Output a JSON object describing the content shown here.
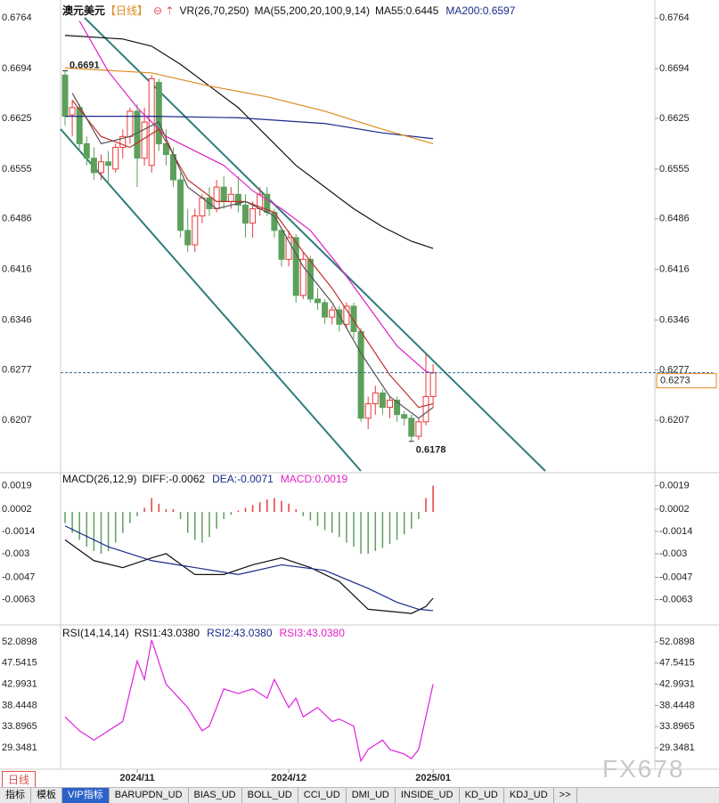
{
  "chart_data": [
    {
      "type": "candlestick",
      "title": "澳元美元",
      "period": "【日线】",
      "indicator": "VR(26,70,250)",
      "legend": "MA(55,200,20,100,9,14)",
      "legend_values": [
        {
          "label": "MA55:0.6445",
          "color": "#111111"
        },
        {
          "label": "MA200:0.6597",
          "color": "#1a2a8a"
        }
      ],
      "colors": {
        "up": "#e8393a",
        "down": "#5ca05c"
      },
      "ohlc": [
        [
          0.6685,
          0.6691,
          0.6615,
          0.6628
        ],
        [
          0.663,
          0.665,
          0.66,
          0.664
        ],
        [
          0.664,
          0.6645,
          0.658,
          0.659
        ],
        [
          0.659,
          0.66,
          0.656,
          0.657
        ],
        [
          0.657,
          0.6585,
          0.654,
          0.655
        ],
        [
          0.655,
          0.6575,
          0.654,
          0.6565
        ],
        [
          0.6565,
          0.658,
          0.6535,
          0.656
        ],
        [
          0.6555,
          0.659,
          0.655,
          0.6585
        ],
        [
          0.6585,
          0.661,
          0.657,
          0.66
        ],
        [
          0.66,
          0.664,
          0.659,
          0.6635
        ],
        [
          0.6635,
          0.6645,
          0.653,
          0.657
        ],
        [
          0.657,
          0.664,
          0.656,
          0.662
        ],
        [
          0.656,
          0.6685,
          0.655,
          0.668
        ],
        [
          0.6675,
          0.668,
          0.658,
          0.659
        ],
        [
          0.659,
          0.661,
          0.656,
          0.6575
        ],
        [
          0.6575,
          0.6585,
          0.653,
          0.654
        ],
        [
          0.654,
          0.655,
          0.646,
          0.647
        ],
        [
          0.647,
          0.65,
          0.644,
          0.645
        ],
        [
          0.645,
          0.65,
          0.644,
          0.649
        ],
        [
          0.649,
          0.652,
          0.648,
          0.6515
        ],
        [
          0.6515,
          0.653,
          0.649,
          0.65
        ],
        [
          0.65,
          0.654,
          0.6495,
          0.653
        ],
        [
          0.653,
          0.6545,
          0.65,
          0.651
        ],
        [
          0.651,
          0.653,
          0.65,
          0.652
        ],
        [
          0.652,
          0.6545,
          0.6495,
          0.6505
        ],
        [
          0.6505,
          0.652,
          0.646,
          0.648
        ],
        [
          0.648,
          0.651,
          0.646,
          0.65
        ],
        [
          0.65,
          0.653,
          0.649,
          0.652
        ],
        [
          0.652,
          0.653,
          0.649,
          0.6495
        ],
        [
          0.6495,
          0.65,
          0.646,
          0.647
        ],
        [
          0.647,
          0.6475,
          0.642,
          0.643
        ],
        [
          0.643,
          0.647,
          0.642,
          0.646
        ],
        [
          0.646,
          0.6465,
          0.637,
          0.638
        ],
        [
          0.638,
          0.644,
          0.6375,
          0.643
        ],
        [
          0.643,
          0.6435,
          0.637,
          0.6375
        ],
        [
          0.6375,
          0.639,
          0.636,
          0.637
        ],
        [
          0.637,
          0.6375,
          0.634,
          0.635
        ],
        [
          0.635,
          0.6365,
          0.634,
          0.636
        ],
        [
          0.636,
          0.6365,
          0.633,
          0.634
        ],
        [
          0.634,
          0.637,
          0.6335,
          0.6365
        ],
        [
          0.6365,
          0.637,
          0.632,
          0.633
        ],
        [
          0.633,
          0.6335,
          0.6205,
          0.621
        ],
        [
          0.621,
          0.624,
          0.6195,
          0.623
        ],
        [
          0.623,
          0.6255,
          0.6215,
          0.6245
        ],
        [
          0.6245,
          0.625,
          0.6215,
          0.6225
        ],
        [
          0.6225,
          0.624,
          0.621,
          0.6235
        ],
        [
          0.6235,
          0.624,
          0.6205,
          0.6215
        ],
        [
          0.6215,
          0.622,
          0.62,
          0.621
        ],
        [
          0.621,
          0.6215,
          0.6178,
          0.6185
        ],
        [
          0.6185,
          0.621,
          0.618,
          0.6205
        ],
        [
          0.6205,
          0.63,
          0.62,
          0.624
        ],
        [
          0.624,
          0.6285,
          0.6225,
          0.6273
        ]
      ],
      "lines": [
        {
          "color": "#111111",
          "x": [
            0,
            8,
            12,
            16,
            20,
            24,
            28,
            32,
            36,
            40,
            44,
            48,
            51
          ],
          "values": [
            0.674,
            0.6735,
            0.6725,
            0.67,
            0.667,
            0.664,
            0.66,
            0.656,
            0.653,
            0.65,
            0.6475,
            0.6455,
            0.6445
          ]
        },
        {
          "color": "#1a2a8a",
          "x": [
            0,
            12,
            24,
            36,
            44,
            51
          ],
          "values": [
            0.6628,
            0.6628,
            0.6626,
            0.6618,
            0.6605,
            0.6597
          ]
        },
        {
          "color": "#e08a20",
          "x": [
            0,
            12,
            20,
            28,
            36,
            44,
            51
          ],
          "values": [
            0.6695,
            0.6688,
            0.667,
            0.6655,
            0.6635,
            0.661,
            0.659
          ]
        },
        {
          "color": "#e020c8",
          "x": [
            2,
            6,
            10,
            14,
            18,
            22,
            26,
            30,
            34,
            38,
            42,
            46,
            50,
            51
          ],
          "values": [
            0.676,
            0.669,
            0.664,
            0.66,
            0.658,
            0.656,
            0.6525,
            0.65,
            0.647,
            0.642,
            0.6365,
            0.631,
            0.6275,
            0.6272
          ]
        },
        {
          "color": "#c0302a",
          "x": [
            1,
            5,
            9,
            13,
            17,
            21,
            25,
            29,
            33,
            37,
            41,
            45,
            49,
            51
          ],
          "values": [
            0.665,
            0.66,
            0.6585,
            0.661,
            0.654,
            0.651,
            0.651,
            0.6495,
            0.644,
            0.639,
            0.633,
            0.627,
            0.6225,
            0.623
          ]
        },
        {
          "color": "#555555",
          "x": [
            1,
            5,
            9,
            13,
            17,
            21,
            25,
            29,
            33,
            37,
            41,
            45,
            49,
            51
          ],
          "values": [
            0.666,
            0.659,
            0.66,
            0.662,
            0.653,
            0.65,
            0.651,
            0.649,
            0.642,
            0.637,
            0.63,
            0.624,
            0.621,
            0.6225
          ]
        }
      ],
      "annotations": [
        {
          "index": 0,
          "value": 0.6691,
          "label": "0.6691",
          "color": "#e05050"
        },
        {
          "index": 48,
          "value": 0.6178,
          "label": "0.6178",
          "color": "#5ca05c"
        }
      ],
      "last_price": 0.6273,
      "ylim": [
        0.6137,
        0.6789
      ],
      "yticks": [
        0.6764,
        0.6694,
        0.6625,
        0.6555,
        0.6486,
        0.6416,
        0.6346,
        0.6277,
        0.6207
      ],
      "xticks": [
        {
          "value": 10,
          "label": "2024/11"
        },
        {
          "value": 31,
          "label": "2024/12"
        },
        {
          "value": 51,
          "label": "2025/01"
        }
      ]
    },
    {
      "type": "macd",
      "title": "MACD(26,12,9)",
      "legend_values": [
        {
          "label": "DIFF:-0.0062",
          "color": "#111111"
        },
        {
          "label": "DEA:-0.0071",
          "color": "#1a2a8a"
        },
        {
          "label": "MACD:0.0019",
          "color": "#e020c8"
        }
      ],
      "histogram": [
        -0.0008,
        -0.0015,
        -0.002,
        -0.0025,
        -0.0028,
        -0.003,
        -0.0028,
        -0.0022,
        -0.0015,
        -0.0008,
        -0.0003,
        0.0003,
        0.001,
        0.0006,
        0.0002,
        0.0002,
        -0.0005,
        -0.0015,
        -0.002,
        -0.0022,
        -0.0018,
        -0.0012,
        -0.0005,
        -0.0002,
        0.0001,
        0.0003,
        0.0005,
        0.0007,
        0.0009,
        0.001,
        0.0008,
        0.0006,
        0.0002,
        -0.0003,
        -0.0006,
        -0.001,
        -0.0013,
        -0.0015,
        -0.0018,
        -0.0022,
        -0.0025,
        -0.003,
        -0.003,
        -0.0028,
        -0.0026,
        -0.0023,
        -0.002,
        -0.0016,
        -0.0012,
        -0.0005,
        0.001,
        0.0019
      ],
      "lines": [
        {
          "color": "#111111",
          "x": [
            0,
            4,
            8,
            12,
            14,
            18,
            22,
            26,
            30,
            34,
            38,
            42,
            46,
            48,
            50,
            51
          ],
          "values": [
            -0.002,
            -0.0035,
            -0.004,
            -0.0033,
            -0.003,
            -0.0045,
            -0.0045,
            -0.0038,
            -0.0033,
            -0.004,
            -0.005,
            -0.007,
            -0.0072,
            -0.0073,
            -0.0068,
            -0.0062
          ]
        },
        {
          "color": "#1a2a8a",
          "x": [
            0,
            6,
            12,
            18,
            24,
            30,
            36,
            42,
            46,
            49,
            51
          ],
          "values": [
            -0.001,
            -0.0025,
            -0.0035,
            -0.004,
            -0.0045,
            -0.0038,
            -0.0042,
            -0.0055,
            -0.0065,
            -0.007,
            -0.0071
          ]
        }
      ],
      "ylim": [
        -0.008,
        0.0027
      ],
      "yticks": [
        0.0019,
        0.0002,
        -0.0014,
        -0.003,
        -0.0047,
        -0.0063
      ]
    },
    {
      "type": "rsi",
      "title": "RSI(14,14,14)",
      "legend_values": [
        {
          "label": "RSI1:43.0380",
          "color": "#111111"
        },
        {
          "label": "RSI2:43.0380",
          "color": "#1a2a8a"
        },
        {
          "label": "RSI3:43.0380",
          "color": "#e020c8"
        }
      ],
      "lines": [
        {
          "color": "#e020e0",
          "x": [
            0,
            2,
            4,
            6,
            8,
            10,
            11,
            12,
            14,
            17,
            19,
            20,
            22,
            24,
            26,
            28,
            29,
            31,
            32,
            33,
            35,
            37,
            38,
            40,
            41,
            42,
            44,
            45,
            47,
            48,
            49,
            51
          ],
          "values": [
            36,
            33,
            31,
            33,
            35,
            48,
            44,
            52.5,
            43,
            38,
            33,
            34,
            42,
            41,
            42,
            40,
            44,
            38,
            40,
            36,
            38,
            35,
            35.5,
            34,
            26.5,
            29,
            31,
            29,
            28,
            27,
            29,
            43
          ]
        }
      ],
      "ylim": [
        25.14,
        55.53
      ],
      "yticks": [
        52.0898,
        47.5415,
        42.9931,
        38.4448,
        33.8965,
        29.3481
      ]
    }
  ],
  "footer": {
    "period": "日线",
    "watermark": "FX678",
    "tabs": [
      "指标",
      "模板",
      "VIP指标",
      "BARUPDN_UD",
      "BIAS_UD",
      "BOLL_UD",
      "CCI_UD",
      "DMI_UD",
      "INSIDE_UD",
      "KD_UD",
      "KDJ_UD",
      ">>"
    ]
  }
}
